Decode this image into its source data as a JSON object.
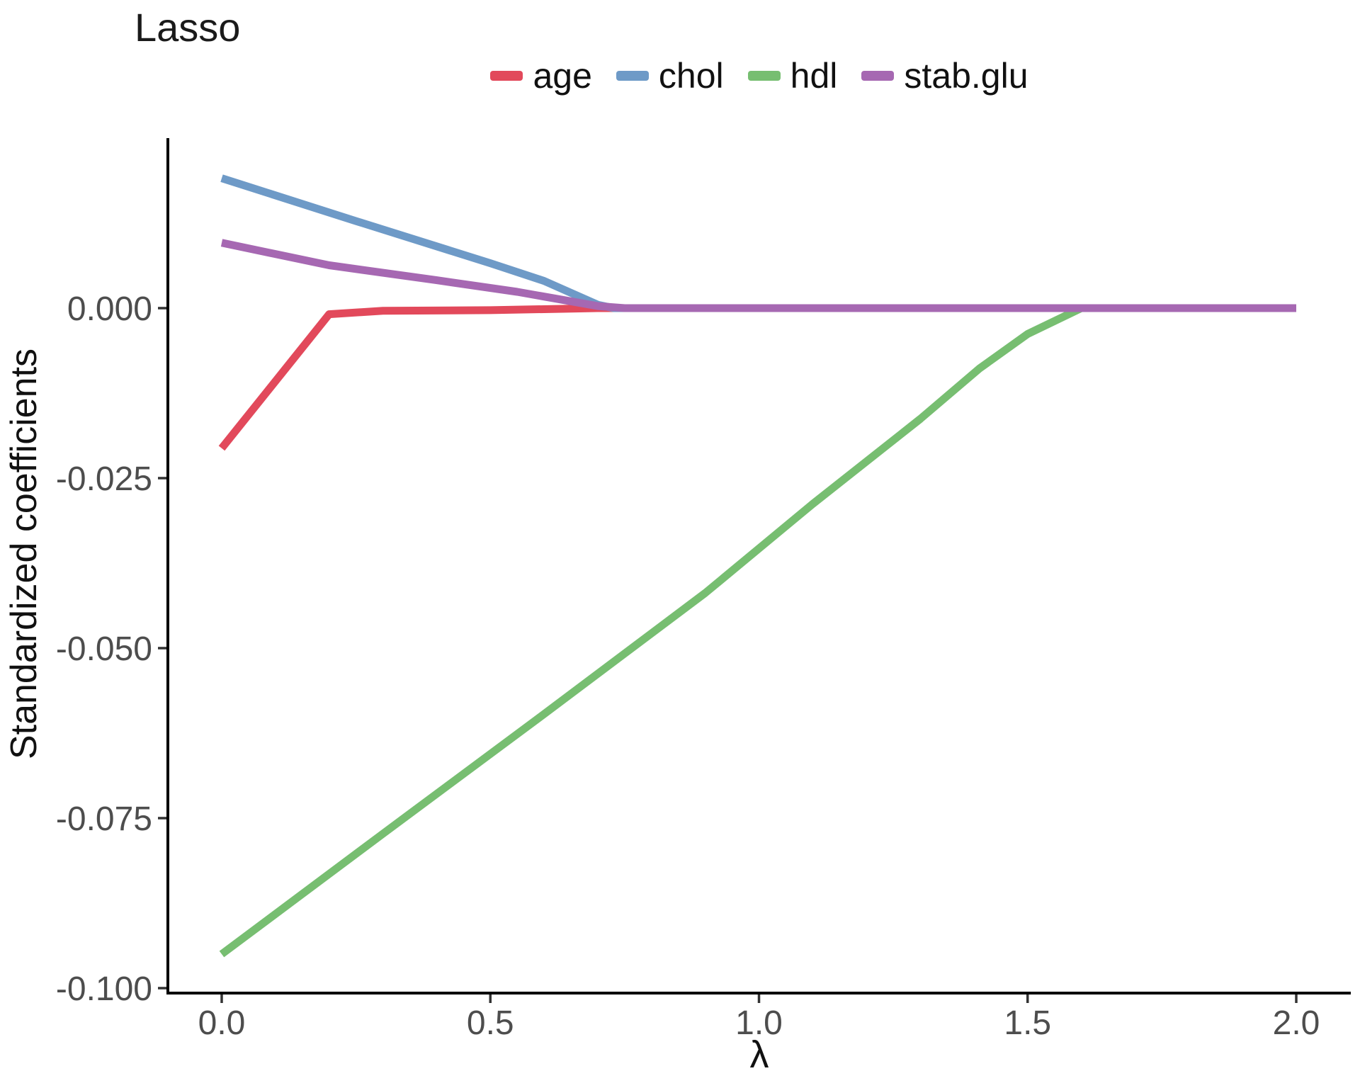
{
  "chart": {
    "title": "Lasso",
    "xlabel": "λ",
    "ylabel": "Standardized coefficients"
  },
  "chart_data": {
    "type": "line",
    "title": "Lasso",
    "xlabel": "λ",
    "ylabel": "Standardized coefficients",
    "xlim": [
      0.0,
      2.0
    ],
    "ylim": [
      -0.104,
      0.022
    ],
    "x_ticks": [
      0.0,
      0.5,
      1.0,
      1.5,
      2.0
    ],
    "x_tick_labels": [
      "0.0",
      "0.5",
      "1.0",
      "1.5",
      "2.0"
    ],
    "y_ticks": [
      0.0,
      -0.025,
      -0.05,
      -0.075,
      -0.1
    ],
    "y_tick_labels": [
      "0.000",
      "-0.025",
      "-0.050",
      "-0.075",
      "-0.100"
    ],
    "grid": false,
    "legend_position": "top",
    "axis_color": "#000000",
    "tick_label_color": "#4D4D4D",
    "series": [
      {
        "name": "age",
        "color": "#E2495B",
        "points": [
          [
            0,
            -0.0206
          ],
          [
            0.2,
            -0.0009
          ],
          [
            0.3,
            -0.0004
          ],
          [
            0.5,
            -0.0003
          ],
          [
            0.7,
            0
          ],
          [
            2,
            0
          ]
        ]
      },
      {
        "name": "chol",
        "color": "#6E9AC7",
        "points": [
          [
            0,
            0.0191
          ],
          [
            0.25,
            0.0128
          ],
          [
            0.5,
            0.0066
          ],
          [
            0.6,
            0.004
          ],
          [
            0.7,
            0.0005
          ],
          [
            0.73,
            0
          ],
          [
            2,
            0
          ]
        ]
      },
      {
        "name": "hdl",
        "color": "#77BE71",
        "points": [
          [
            0,
            -0.095
          ],
          [
            0.3,
            -0.0773
          ],
          [
            0.6,
            -0.0597
          ],
          [
            0.9,
            -0.0419
          ],
          [
            1.1,
            -0.0288
          ],
          [
            1.3,
            -0.0163
          ],
          [
            1.41,
            -0.0089
          ],
          [
            1.5,
            -0.0038
          ],
          [
            1.6,
            0
          ],
          [
            2,
            0
          ]
        ]
      },
      {
        "name": "stab.glu",
        "color": "#A668B2",
        "points": [
          [
            0,
            0.0096
          ],
          [
            0.2,
            0.0063
          ],
          [
            0.4,
            0.0041
          ],
          [
            0.55,
            0.0024
          ],
          [
            0.7,
            0.0003
          ],
          [
            0.75,
            0
          ],
          [
            2,
            0
          ]
        ]
      }
    ]
  }
}
